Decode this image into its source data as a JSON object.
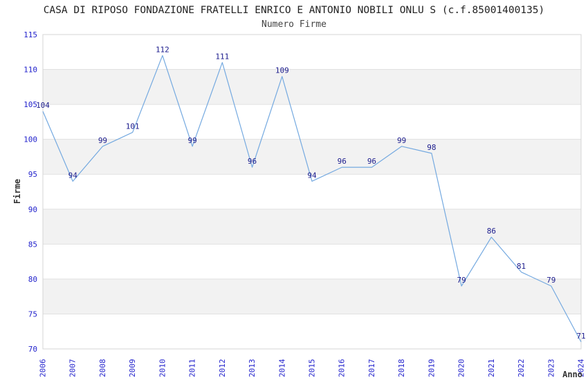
{
  "chart_data": {
    "type": "line",
    "title": "CASA DI RIPOSO FONDAZIONE FRATELLI ENRICO E ANTONIO NOBILI ONLU S (c.f.85001400135)",
    "subtitle": "Numero Firme",
    "xlabel": "Anno",
    "ylabel": "Firme",
    "x": [
      2006,
      2007,
      2008,
      2009,
      2010,
      2011,
      2012,
      2013,
      2014,
      2015,
      2016,
      2017,
      2018,
      2019,
      2020,
      2021,
      2022,
      2023,
      2024
    ],
    "values": [
      104,
      94,
      99,
      101,
      112,
      99,
      111,
      96,
      109,
      94,
      96,
      96,
      99,
      98,
      79,
      86,
      81,
      79,
      71
    ],
    "ylim": [
      70,
      115
    ],
    "ytick_step": 5,
    "yticks": [
      70,
      75,
      80,
      85,
      90,
      95,
      100,
      105,
      110,
      115
    ],
    "grid": "horizontal gridlines with alternating gray bands",
    "legend": "none",
    "data_labels": "shown above each point",
    "colors": {
      "line": "#74a9e0",
      "band": "#f2f2f2",
      "gridline": "#e0e0e0",
      "plot_border": "#d4d4d4",
      "tick_label": "#2222cc",
      "data_label": "#1a1a8c",
      "title": "#222222",
      "subtitle": "#444444",
      "axis_title": "#333333"
    }
  }
}
